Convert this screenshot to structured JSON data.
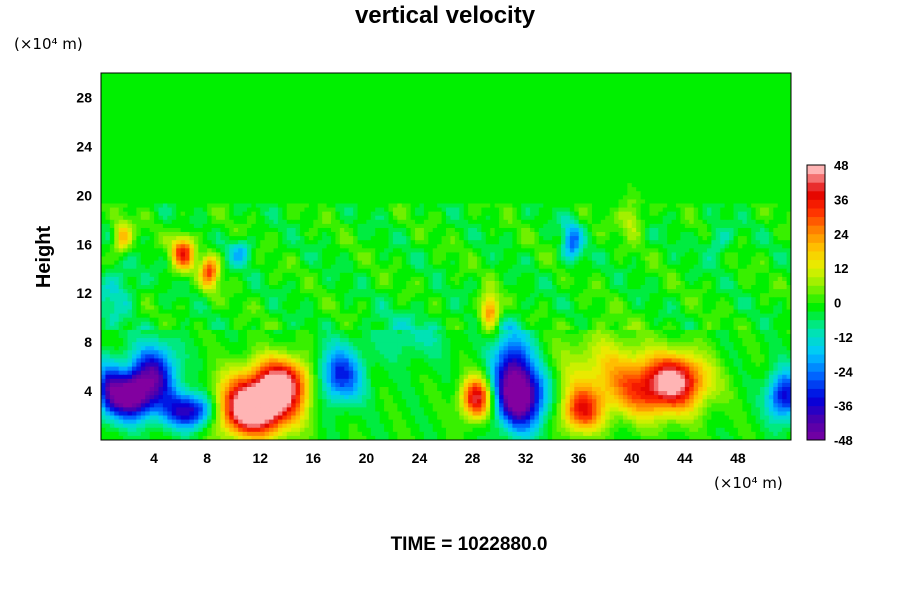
{
  "chart_data": {
    "type": "heatmap",
    "title": "vertical velocity",
    "xlabel": "",
    "ylabel": "Height",
    "x_unit": "(×10⁴ m)",
    "y_unit": "(×10⁴ m)",
    "xlim": [
      0,
      52
    ],
    "ylim": [
      0,
      30
    ],
    "x_ticks": [
      "4",
      "8",
      "12",
      "16",
      "20",
      "24",
      "28",
      "32",
      "36",
      "40",
      "44",
      "48"
    ],
    "y_ticks": [
      "4",
      "8",
      "12",
      "16",
      "20",
      "24",
      "28"
    ],
    "colorbar": {
      "range": [
        -48,
        48
      ],
      "ticks": [
        "48",
        "36",
        "24",
        "12",
        "0",
        "-12",
        "-24",
        "-36",
        "-48"
      ]
    },
    "features": [
      {
        "x": 11.8,
        "y": 3.0,
        "value": 50,
        "sx": 2.0,
        "sy": 1.8
      },
      {
        "x": 13.8,
        "y": 4.8,
        "value": 36,
        "sx": 1.4,
        "sy": 1.4
      },
      {
        "x": 11.0,
        "y": 2.2,
        "value": 20,
        "sx": 1.8,
        "sy": 1.2
      },
      {
        "x": 2.2,
        "y": 3.6,
        "value": -48,
        "sx": 1.0,
        "sy": 1.3
      },
      {
        "x": 4.0,
        "y": 5.2,
        "value": -38,
        "sx": 1.2,
        "sy": 1.8
      },
      {
        "x": 6.8,
        "y": 2.4,
        "value": -40,
        "sx": 1.4,
        "sy": 1.0
      },
      {
        "x": 0.6,
        "y": 4.2,
        "value": -28,
        "sx": 0.7,
        "sy": 1.6
      },
      {
        "x": 18.0,
        "y": 5.3,
        "value": -30,
        "sx": 1.2,
        "sy": 1.6
      },
      {
        "x": 28.3,
        "y": 3.4,
        "value": 44,
        "sx": 0.8,
        "sy": 1.2
      },
      {
        "x": 31.6,
        "y": 3.5,
        "value": -52,
        "sx": 1.3,
        "sy": 1.8
      },
      {
        "x": 31.0,
        "y": 6.5,
        "value": -26,
        "sx": 1.0,
        "sy": 2.0
      },
      {
        "x": 36.2,
        "y": 2.4,
        "value": 34,
        "sx": 1.1,
        "sy": 1.3
      },
      {
        "x": 41.8,
        "y": 4.0,
        "value": 32,
        "sx": 2.4,
        "sy": 1.6
      },
      {
        "x": 43.5,
        "y": 5.2,
        "value": 28,
        "sx": 1.5,
        "sy": 1.4
      },
      {
        "x": 38.0,
        "y": 6.0,
        "value": 14,
        "sx": 2.6,
        "sy": 2.0
      },
      {
        "x": 51.5,
        "y": 3.6,
        "value": -34,
        "sx": 0.9,
        "sy": 1.4
      },
      {
        "x": 6.2,
        "y": 15.3,
        "value": 34,
        "sx": 0.6,
        "sy": 1.0
      },
      {
        "x": 8.2,
        "y": 13.8,
        "value": 30,
        "sx": 0.5,
        "sy": 1.0
      },
      {
        "x": 1.6,
        "y": 16.5,
        "value": 22,
        "sx": 0.5,
        "sy": 1.0
      },
      {
        "x": 29.3,
        "y": 10.5,
        "value": 30,
        "sx": 0.5,
        "sy": 1.0
      },
      {
        "x": 35.5,
        "y": 16.2,
        "value": -22,
        "sx": 0.5,
        "sy": 1.2
      },
      {
        "x": 10.5,
        "y": 15.4,
        "value": -16,
        "sx": 0.6,
        "sy": 0.7
      },
      {
        "x": 40.0,
        "y": 18.2,
        "value": 14,
        "sx": 0.6,
        "sy": 1.0
      },
      {
        "x": 1.2,
        "y": 12.2,
        "value": -12,
        "sx": 1.0,
        "sy": 1.5
      },
      {
        "x": 46.5,
        "y": 16.2,
        "value": -10,
        "sx": 0.7,
        "sy": 1.0
      },
      {
        "x": 23.5,
        "y": 8.5,
        "value": -8,
        "sx": 2.0,
        "sy": 1.5
      }
    ]
  },
  "footer": {
    "time_label": "TIME = 1022880.0"
  }
}
